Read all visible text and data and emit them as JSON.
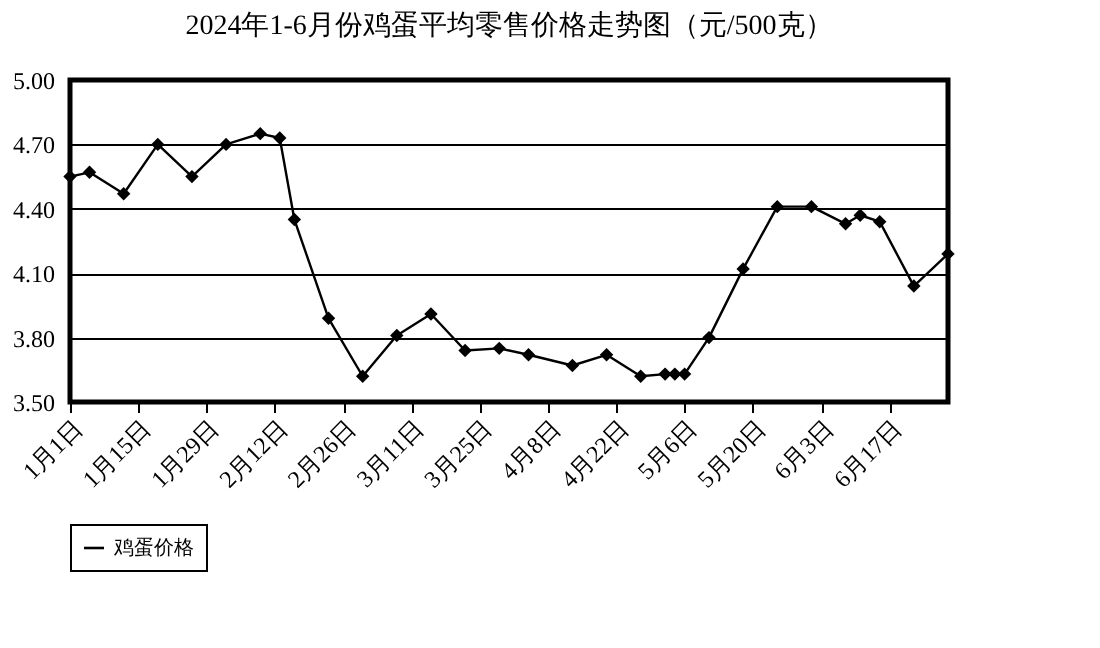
{
  "chart_data": {
    "type": "line",
    "title": "2024年1-6月份鸡蛋平均零售价格走势图（元/500克）",
    "x": [
      "2024-01-01",
      "2024-01-05",
      "2024-01-12",
      "2024-01-19",
      "2024-01-26",
      "2024-02-02",
      "2024-02-09",
      "2024-02-13",
      "2024-02-16",
      "2024-02-23",
      "2024-03-01",
      "2024-03-08",
      "2024-03-15",
      "2024-03-22",
      "2024-03-29",
      "2024-04-04",
      "2024-04-13",
      "2024-04-20",
      "2024-04-27",
      "2024-05-02",
      "2024-05-04",
      "2024-05-06",
      "2024-05-11",
      "2024-05-18",
      "2024-05-25",
      "2024-06-01",
      "2024-06-08",
      "2024-06-11",
      "2024-06-15",
      "2024-06-22",
      "2024-06-29"
    ],
    "series": [
      {
        "name": "鸡蛋价格",
        "color": "#000000",
        "values": [
          4.55,
          4.57,
          4.47,
          4.7,
          4.55,
          4.7,
          4.75,
          4.73,
          4.35,
          3.89,
          3.62,
          3.81,
          3.91,
          3.74,
          3.75,
          3.72,
          3.67,
          3.72,
          3.62,
          3.63,
          3.63,
          3.63,
          3.8,
          4.12,
          4.41,
          4.41,
          4.33,
          4.37,
          4.34,
          4.04,
          4.19
        ]
      }
    ],
    "xlim": [
      "2024-01-01",
      "2024-06-29"
    ],
    "xticks": [
      {
        "value": "2024-01-01",
        "label": "1月1日"
      },
      {
        "value": "2024-01-15",
        "label": "1月15日"
      },
      {
        "value": "2024-01-29",
        "label": "1月29日"
      },
      {
        "value": "2024-02-12",
        "label": "2月12日"
      },
      {
        "value": "2024-02-26",
        "label": "2月26日"
      },
      {
        "value": "2024-03-11",
        "label": "3月11日"
      },
      {
        "value": "2024-03-25",
        "label": "3月25日"
      },
      {
        "value": "2024-04-08",
        "label": "4月8日"
      },
      {
        "value": "2024-04-22",
        "label": "4月22日"
      },
      {
        "value": "2024-05-06",
        "label": "5月6日"
      },
      {
        "value": "2024-05-20",
        "label": "5月20日"
      },
      {
        "value": "2024-06-03",
        "label": "6月3日"
      },
      {
        "value": "2024-06-17",
        "label": "6月17日"
      }
    ],
    "ylim": [
      3.5,
      5.0
    ],
    "yticks": [
      {
        "value": 3.5,
        "label": "3.50"
      },
      {
        "value": 3.8,
        "label": "3.80"
      },
      {
        "value": 4.1,
        "label": "4.10"
      },
      {
        "value": 4.4,
        "label": "4.40"
      },
      {
        "value": 4.7,
        "label": "4.70"
      },
      {
        "value": 5.0,
        "label": "5.00"
      }
    ],
    "grid": "y",
    "legend": "bottom",
    "marker": "diamond",
    "line_style": "solid"
  }
}
